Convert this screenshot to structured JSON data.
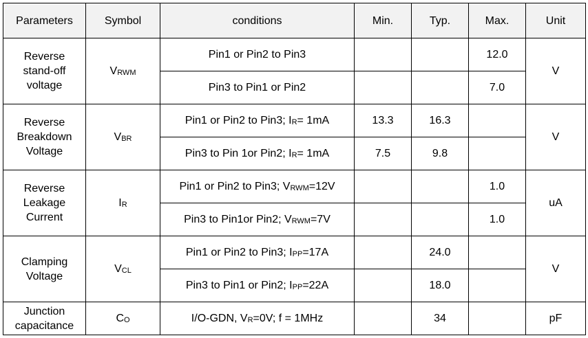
{
  "table": {
    "header": [
      "Parameters",
      "Symbol",
      "conditions",
      "Min.",
      "Typ.",
      "Max.",
      "Unit"
    ],
    "groups": [
      {
        "parameter": [
          "Reverse",
          "stand-off",
          "voltage"
        ],
        "symbol": [
          "V",
          "RWM"
        ],
        "unit": "V",
        "rows": [
          {
            "conditions": [
              "Pin1 or Pin2 to Pin3"
            ],
            "min": null,
            "typ": null,
            "max": "12.0"
          },
          {
            "conditions": [
              "Pin3 to Pin1 or Pin2"
            ],
            "min": null,
            "typ": null,
            "max": "7.0"
          }
        ]
      },
      {
        "parameter": [
          "Reverse",
          "Breakdown",
          "Voltage"
        ],
        "symbol": [
          "V",
          "BR"
        ],
        "unit": "V",
        "rows": [
          {
            "conditions": [
              "Pin1 or Pin2 to Pin3; I",
              "R",
              "= 1mA"
            ],
            "min": "13.3",
            "typ": "16.3",
            "max": null
          },
          {
            "conditions": [
              "Pin3 to Pin 1or Pin2; I",
              "R",
              "= 1mA"
            ],
            "min": "7.5",
            "typ": "9.8",
            "max": null
          }
        ]
      },
      {
        "parameter": [
          "Reverse",
          "Leakage",
          "Current"
        ],
        "symbol": [
          "I",
          "R"
        ],
        "unit": "uA",
        "rows": [
          {
            "conditions": [
              "Pin1 or Pin2 to Pin3; V",
              "RWM",
              "=12V"
            ],
            "min": null,
            "typ": null,
            "max": "1.0"
          },
          {
            "conditions": [
              "Pin3 to Pin1or Pin2; V",
              "RWM",
              "=7V"
            ],
            "min": null,
            "typ": null,
            "max": "1.0"
          }
        ]
      },
      {
        "parameter": [
          "Clamping",
          "Voltage"
        ],
        "symbol": [
          "V",
          "CL"
        ],
        "unit": "V",
        "rows": [
          {
            "conditions": [
              "Pin1 or Pin2 to Pin3; I",
              "PP",
              "=17A"
            ],
            "min": null,
            "typ": "24.0",
            "max": null
          },
          {
            "conditions": [
              "Pin3 to Pin1 or Pin2; I",
              "PP",
              "=22A"
            ],
            "min": null,
            "typ": "18.0",
            "max": null
          }
        ]
      },
      {
        "parameter": [
          "Junction",
          "capacitance"
        ],
        "symbol": [
          "C",
          "O"
        ],
        "unit": "pF",
        "rows": [
          {
            "conditions": [
              "I/O-GDN, V",
              "R",
              "=0V; f = 1MHz"
            ],
            "min": null,
            "typ": "34",
            "max": null
          }
        ]
      }
    ]
  }
}
